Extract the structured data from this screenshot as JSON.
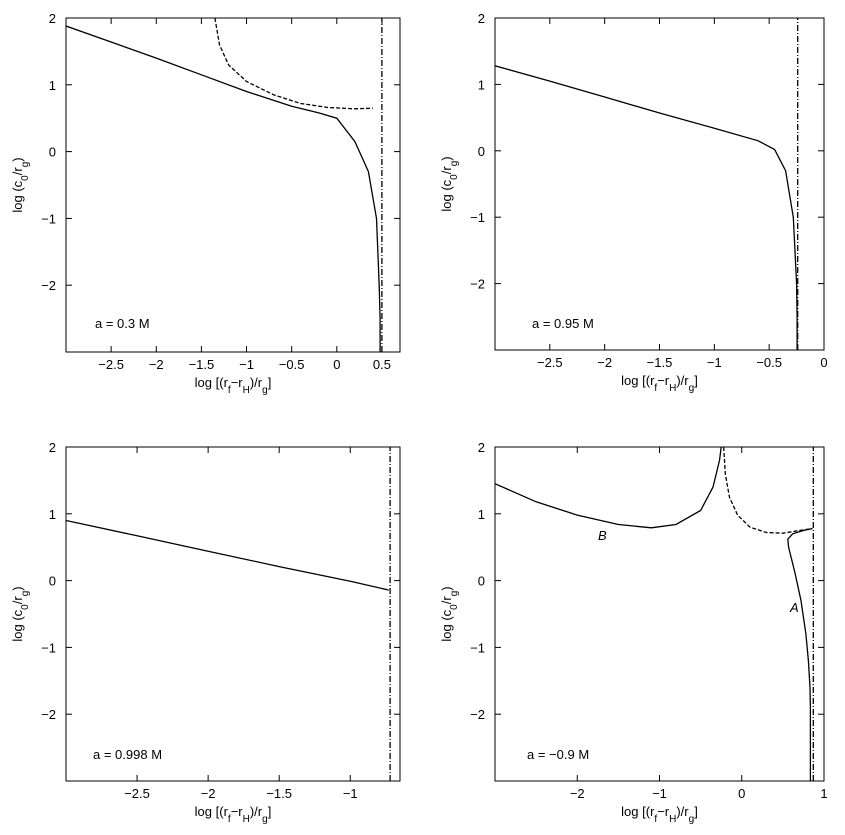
{
  "chart_data": [
    {
      "type": "line",
      "annotation": "a = 0.3 M",
      "xlabel": "log [(r_f−r_H)/r_g]",
      "ylabel": "log (c_0/r_g)",
      "xlim": [
        -3.0,
        0.7
      ],
      "ylim": [
        -3.0,
        2.0
      ],
      "xticks": [
        -2.5,
        -2,
        -1.5,
        -1,
        -0.5,
        0,
        0.5
      ],
      "xtick_labels": [
        "−2.5",
        "−2",
        "−1.5",
        "−1",
        "−0.5",
        "0",
        "0.5"
      ],
      "yticks": [
        -2,
        -1,
        0,
        1,
        2
      ],
      "ytick_labels": [
        "−2",
        "−1",
        "0",
        "1",
        "2"
      ],
      "series": [
        {
          "style": "solid",
          "x": [
            -3.0,
            -2.5,
            -2.0,
            -1.5,
            -1.0,
            -0.5,
            -0.2,
            0.0,
            0.2,
            0.35,
            0.44,
            0.47,
            0.48,
            0.48
          ],
          "y": [
            1.88,
            1.64,
            1.4,
            1.15,
            0.9,
            0.68,
            0.58,
            0.5,
            0.15,
            -0.3,
            -1.0,
            -2.0,
            -2.5,
            -3.0
          ]
        },
        {
          "style": "dashed",
          "x": [
            -1.35,
            -1.3,
            -1.2,
            -1.0,
            -0.7,
            -0.4,
            -0.1,
            0.2,
            0.4
          ],
          "y": [
            2.0,
            1.6,
            1.3,
            1.05,
            0.85,
            0.72,
            0.66,
            0.64,
            0.65
          ]
        },
        {
          "style": "dashdot",
          "x": [
            0.5,
            0.5
          ],
          "y": [
            -3.0,
            2.0
          ]
        }
      ]
    },
    {
      "type": "line",
      "annotation": "a = 0.95 M",
      "xlabel": "log [(r_f−r_H)/r_g]",
      "ylabel": "log (c_0/r_g)",
      "xlim": [
        -3.0,
        0.0
      ],
      "ylim": [
        -3.0,
        2.0
      ],
      "xticks": [
        -2.5,
        -2,
        -1.5,
        -1,
        -0.5,
        0
      ],
      "xtick_labels": [
        "−2.5",
        "−2",
        "−1.5",
        "−1",
        "−0.5",
        "0"
      ],
      "yticks": [
        -2,
        -1,
        0,
        1,
        2
      ],
      "ytick_labels": [
        "−2",
        "−1",
        "0",
        "1",
        "2"
      ],
      "series": [
        {
          "style": "solid",
          "x": [
            -3.0,
            -2.5,
            -2.0,
            -1.5,
            -1.0,
            -0.6,
            -0.45,
            -0.35,
            -0.28,
            -0.25,
            -0.245,
            -0.245
          ],
          "y": [
            1.28,
            1.05,
            0.81,
            0.57,
            0.34,
            0.15,
            0.02,
            -0.3,
            -1.0,
            -2.0,
            -2.5,
            -3.0
          ]
        },
        {
          "style": "dashdot",
          "x": [
            -0.24,
            -0.24
          ],
          "y": [
            -3.0,
            2.0
          ]
        }
      ]
    },
    {
      "type": "line",
      "annotation": "a = 0.998 M",
      "xlabel": "log [(r_f−r_H)/r_g]",
      "ylabel": "log (c_0/r_g)",
      "xlim": [
        -3.0,
        -0.65
      ],
      "ylim": [
        -3.0,
        2.0
      ],
      "xticks": [
        -2.5,
        -2,
        -1.5,
        -1
      ],
      "xtick_labels": [
        "−2.5",
        "−2",
        "−1.5",
        "−1"
      ],
      "yticks": [
        -2,
        -1,
        0,
        1,
        2
      ],
      "ytick_labels": [
        "−2",
        "−1",
        "0",
        "1",
        "2"
      ],
      "series": [
        {
          "style": "solid",
          "x": [
            -3.0,
            -2.5,
            -2.0,
            -1.5,
            -1.0,
            -0.73
          ],
          "y": [
            0.9,
            0.67,
            0.44,
            0.21,
            -0.01,
            -0.14
          ]
        },
        {
          "style": "dashdot",
          "x": [
            -0.72,
            -0.72
          ],
          "y": [
            -3.0,
            2.0
          ]
        }
      ]
    },
    {
      "type": "line",
      "annotation": "a = −0.9 M",
      "labels": [
        "A",
        "B"
      ],
      "xlabel": "log [(r_f−r_H)/r_g]",
      "ylabel": "log (c_0/r_g)",
      "xlim": [
        -3.0,
        1.0
      ],
      "ylim": [
        -3.0,
        2.0
      ],
      "xticks": [
        -2,
        -1,
        0,
        1
      ],
      "xtick_labels": [
        "−2",
        "−1",
        "0",
        "1"
      ],
      "yticks": [
        -2,
        -1,
        0,
        1,
        2
      ],
      "ytick_labels": [
        "−2",
        "−1",
        "0",
        "1",
        "2"
      ],
      "series": [
        {
          "style": "solid",
          "x": [
            -3.0,
            -2.5,
            -2.0,
            -1.5,
            -1.1,
            -0.8,
            -0.5,
            -0.35,
            -0.27,
            -0.25
          ],
          "y": [
            1.45,
            1.18,
            0.98,
            0.84,
            0.79,
            0.84,
            1.05,
            1.4,
            1.8,
            2.0
          ]
        },
        {
          "style": "dashed",
          "x": [
            -0.22,
            -0.2,
            -0.15,
            -0.05,
            0.1,
            0.3,
            0.5,
            0.7,
            0.86
          ],
          "y": [
            2.0,
            1.6,
            1.25,
            0.98,
            0.8,
            0.72,
            0.71,
            0.75,
            0.78
          ]
        },
        {
          "style": "solid",
          "x": [
            0.86,
            0.75,
            0.62,
            0.56,
            0.57,
            0.65,
            0.72,
            0.78,
            0.81,
            0.83,
            0.835,
            0.835
          ],
          "y": [
            0.78,
            0.75,
            0.7,
            0.62,
            0.5,
            0.1,
            -0.3,
            -0.8,
            -1.2,
            -1.6,
            -1.9,
            -3.0
          ]
        },
        {
          "style": "dashdot",
          "x": [
            0.87,
            0.87
          ],
          "y": [
            -3.0,
            2.0
          ]
        }
      ]
    }
  ]
}
